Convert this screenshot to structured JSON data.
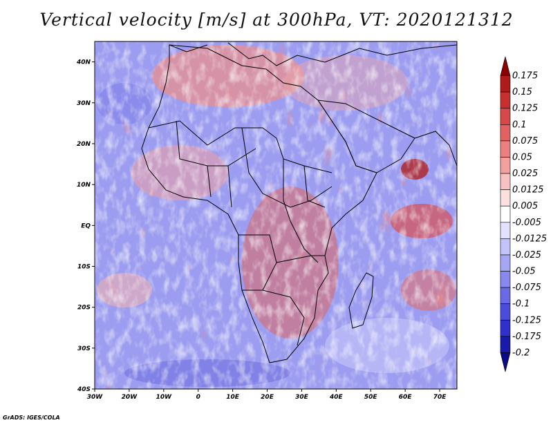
{
  "title": "Vertical velocity [m/s] at 300hPa, VT: 2020121312",
  "footer": "GrADS: IGES/COLA",
  "map": {
    "lon_range": [
      -30,
      75
    ],
    "lat_range": [
      -40,
      45
    ],
    "x_ticks": [
      "30W",
      "20W",
      "10W",
      "0",
      "10E",
      "20E",
      "30E",
      "40E",
      "50E",
      "60E",
      "70E"
    ],
    "x_tick_values": [
      -30,
      -20,
      -10,
      0,
      10,
      20,
      30,
      40,
      50,
      60,
      70
    ],
    "y_ticks": [
      "40N",
      "30N",
      "20N",
      "10N",
      "EQ",
      "10S",
      "20S",
      "30S",
      "40S"
    ],
    "y_tick_values": [
      40,
      30,
      20,
      10,
      0,
      -10,
      -20,
      -30,
      -40
    ]
  },
  "colorbar": {
    "labels": [
      "0.175",
      "0.15",
      "0.125",
      "0.1",
      "0.075",
      "0.05",
      "0.025",
      "0.0125",
      "0.005",
      "-0.005",
      "-0.0125",
      "-0.025",
      "-0.05",
      "-0.075",
      "-0.1",
      "-0.125",
      "-0.175",
      "-0.2"
    ],
    "colors": [
      "#8b0000",
      "#b01a1a",
      "#c83030",
      "#d84848",
      "#e26262",
      "#ec8080",
      "#f3a0a0",
      "#f8c2c2",
      "#fce0e0",
      "#ffffff",
      "#e2e2ff",
      "#c4c4fb",
      "#a6a6f5",
      "#8888ef",
      "#6a6ae6",
      "#4c4cdc",
      "#3030cc",
      "#1a1aaa",
      "#0b0b88"
    ]
  }
}
